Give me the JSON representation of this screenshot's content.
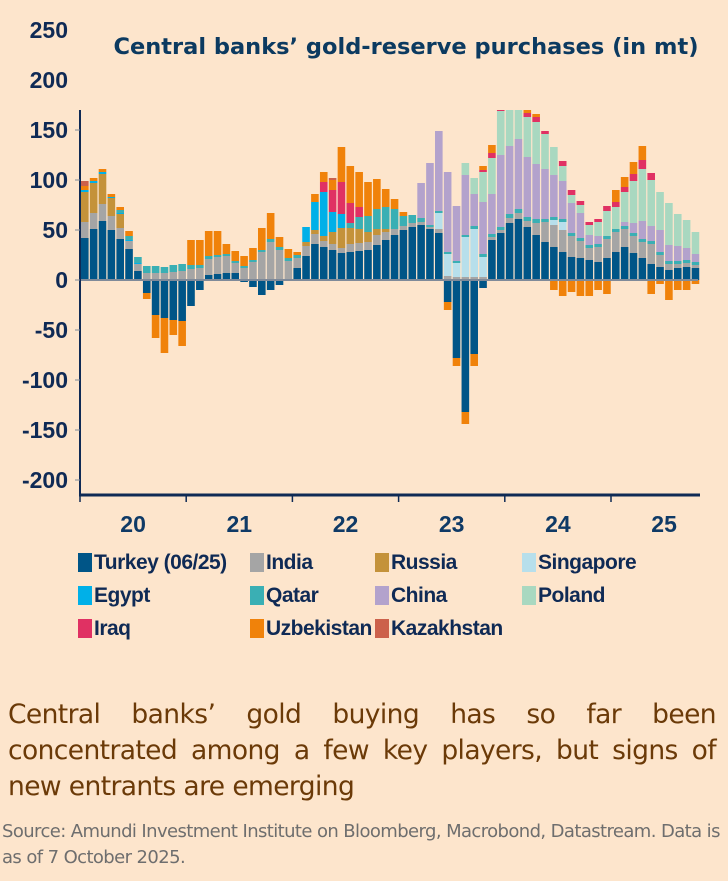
{
  "chart_data": {
    "type": "bar",
    "stacked": true,
    "title": "Central banks’ gold-reserve purchases (in mt)",
    "xlabel": "",
    "ylabel": "",
    "ylim": [
      -210,
      260
    ],
    "yticks": [
      250,
      200,
      150,
      100,
      50,
      0,
      -50,
      -100,
      -150,
      -200
    ],
    "year_ticks": [
      "20",
      "21",
      "22",
      "23",
      "24",
      "25"
    ],
    "frequency": "monthly",
    "period": "Jan 2020 - Jun 2025",
    "grid": false,
    "legend_position": "bottom",
    "series": [
      {
        "name": "Turkey (06/25)",
        "color": "#005587",
        "values": [
          42,
          51,
          59,
          50,
          41,
          31,
          9,
          -13,
          -35,
          -38,
          -40,
          -41,
          -26,
          -10,
          5,
          6,
          7,
          7,
          -2,
          -7,
          -15,
          -10,
          -5,
          1,
          12,
          24,
          36,
          33,
          30,
          27,
          28,
          29,
          30,
          35,
          40,
          45,
          50,
          53,
          55,
          51,
          47,
          -22,
          -78,
          -132,
          -74,
          -8,
          40,
          47,
          57,
          61,
          53,
          45,
          38,
          33,
          28,
          23,
          22,
          20,
          18,
          22,
          28,
          33,
          27,
          22,
          16,
          13,
          10,
          12,
          13,
          12
        ]
      },
      {
        "name": "India",
        "color": "#a5a5a5",
        "values": [
          16,
          16,
          17,
          14,
          11,
          8,
          7,
          7,
          7,
          7,
          8,
          9,
          11,
          12,
          16,
          17,
          17,
          10,
          12,
          18,
          28,
          38,
          30,
          18,
          10,
          10,
          10,
          6,
          6,
          5,
          8,
          8,
          8,
          10,
          8,
          6,
          4,
          4,
          3,
          2,
          4,
          4,
          3,
          3,
          3,
          3,
          3,
          3,
          5,
          6,
          6,
          12,
          20,
          22,
          22,
          21,
          17,
          12,
          15,
          19,
          20,
          18,
          17,
          16,
          20,
          12,
          6,
          4,
          4,
          3
        ]
      },
      {
        "name": "Russia",
        "color": "#c4923a",
        "values": [
          30,
          30,
          30,
          18,
          14,
          0,
          0,
          0,
          0,
          0,
          0,
          0,
          0,
          0,
          0,
          0,
          0,
          0,
          0,
          0,
          0,
          0,
          0,
          0,
          0,
          4,
          4,
          5,
          12,
          20,
          16,
          14,
          10,
          6,
          3,
          0,
          0,
          0,
          0,
          0,
          0,
          0,
          0,
          0,
          0,
          0,
          0,
          0,
          0,
          0,
          0,
          0,
          0,
          0,
          0,
          0,
          0,
          0,
          0,
          0,
          0,
          0,
          0,
          0,
          0,
          0,
          0,
          0,
          0,
          0
        ]
      },
      {
        "name": "Singapore",
        "color": "#b7dfeb",
        "values": [
          0,
          0,
          0,
          0,
          0,
          0,
          0,
          0,
          0,
          0,
          0,
          0,
          0,
          0,
          0,
          0,
          0,
          0,
          0,
          0,
          0,
          0,
          0,
          0,
          0,
          0,
          0,
          0,
          0,
          0,
          0,
          0,
          0,
          0,
          0,
          0,
          0,
          0,
          0,
          0,
          16,
          22,
          14,
          40,
          48,
          20,
          0,
          0,
          0,
          0,
          0,
          0,
          0,
          5,
          8,
          0,
          0,
          0,
          0,
          0,
          0,
          0,
          0,
          0,
          0,
          0,
          0,
          0,
          0,
          0
        ]
      },
      {
        "name": "Egypt",
        "color": "#00b0e8",
        "values": [
          2,
          2,
          2,
          1,
          1,
          1,
          1,
          0,
          0,
          0,
          0,
          0,
          0,
          0,
          0,
          0,
          0,
          0,
          0,
          0,
          0,
          0,
          0,
          0,
          0,
          15,
          28,
          44,
          20,
          14,
          0,
          0,
          0,
          0,
          0,
          0,
          0,
          0,
          0,
          0,
          0,
          0,
          0,
          0,
          0,
          0,
          0,
          0,
          0,
          0,
          0,
          0,
          0,
          0,
          0,
          0,
          0,
          0,
          0,
          0,
          0,
          0,
          0,
          0,
          0,
          0,
          0,
          0,
          0,
          0
        ]
      },
      {
        "name": "Qatar",
        "color": "#3aafb4",
        "values": [
          0,
          0,
          0,
          0,
          3,
          4,
          6,
          7,
          7,
          6,
          7,
          7,
          4,
          3,
          3,
          2,
          2,
          2,
          2,
          2,
          2,
          3,
          3,
          3,
          3,
          0,
          0,
          0,
          0,
          0,
          5,
          12,
          16,
          20,
          22,
          20,
          10,
          8,
          4,
          2,
          2,
          2,
          2,
          2,
          3,
          3,
          3,
          3,
          4,
          4,
          4,
          4,
          3,
          3,
          3,
          3,
          3,
          3,
          3,
          3,
          3,
          3,
          3,
          3,
          3,
          3,
          3,
          3,
          3,
          3
        ]
      },
      {
        "name": "China",
        "color": "#b3a2cc",
        "values": [
          0,
          0,
          0,
          0,
          0,
          0,
          0,
          0,
          0,
          0,
          0,
          0,
          0,
          0,
          0,
          0,
          0,
          0,
          0,
          0,
          0,
          0,
          0,
          0,
          0,
          0,
          0,
          0,
          0,
          0,
          0,
          0,
          0,
          0,
          0,
          0,
          0,
          0,
          35,
          62,
          80,
          80,
          55,
          60,
          32,
          52,
          40,
          72,
          68,
          70,
          60,
          55,
          50,
          42,
          38,
          30,
          25,
          10,
          8,
          0,
          0,
          4,
          10,
          18,
          15,
          22,
          16,
          15,
          12,
          8
        ]
      },
      {
        "name": "Poland",
        "color": "#a9d8c0",
        "values": [
          0,
          0,
          0,
          0,
          0,
          0,
          0,
          0,
          0,
          0,
          0,
          0,
          0,
          0,
          0,
          0,
          0,
          0,
          0,
          0,
          0,
          0,
          0,
          0,
          0,
          0,
          0,
          0,
          0,
          0,
          0,
          0,
          0,
          0,
          0,
          0,
          0,
          0,
          0,
          0,
          0,
          0,
          0,
          12,
          16,
          30,
          36,
          44,
          50,
          44,
          40,
          42,
          35,
          28,
          15,
          8,
          8,
          10,
          14,
          25,
          22,
          30,
          42,
          52,
          46,
          38,
          42,
          32,
          28,
          22
        ]
      },
      {
        "name": "Iraq",
        "color": "#e03163",
        "values": [
          0,
          0,
          0,
          0,
          0,
          0,
          0,
          0,
          0,
          0,
          0,
          0,
          0,
          0,
          0,
          0,
          0,
          0,
          0,
          0,
          0,
          0,
          0,
          0,
          0,
          0,
          0,
          10,
          22,
          32,
          20,
          10,
          0,
          0,
          0,
          0,
          0,
          0,
          0,
          0,
          0,
          0,
          0,
          0,
          0,
          2,
          5,
          5,
          4,
          6,
          4,
          5,
          3,
          0,
          5,
          5,
          4,
          3,
          3,
          5,
          5,
          5,
          7,
          9,
          7,
          0,
          0,
          0,
          0,
          0
        ]
      },
      {
        "name": "Uzbekistan",
        "color": "#f0820a",
        "values": [
          4,
          3,
          3,
          3,
          3,
          5,
          0,
          -6,
          -23,
          -35,
          -15,
          -25,
          25,
          25,
          25,
          24,
          10,
          10,
          10,
          12,
          22,
          26,
          10,
          9,
          3,
          0,
          8,
          10,
          10,
          35,
          37,
          35,
          34,
          30,
          18,
          10,
          4,
          0,
          0,
          0,
          0,
          -8,
          -8,
          -12,
          -12,
          4,
          8,
          5,
          7,
          5,
          4,
          3,
          0,
          -10,
          -16,
          -12,
          -16,
          -16,
          -10,
          -14,
          12,
          10,
          12,
          14,
          -14,
          -4,
          -20,
          -10,
          -10,
          -4
        ]
      },
      {
        "name": "Kazakhstan",
        "color": "#cc614b",
        "values": [
          5,
          0,
          0,
          0,
          0,
          0,
          0,
          0,
          0,
          0,
          0,
          0,
          0,
          0,
          0,
          0,
          0,
          0,
          0,
          0,
          0,
          0,
          0,
          0,
          0,
          0,
          0,
          0,
          2,
          0,
          0,
          0,
          0,
          0,
          0,
          0,
          0,
          0,
          0,
          0,
          0,
          0,
          0,
          0,
          0,
          0,
          0,
          0,
          0,
          0,
          0,
          0,
          0,
          0,
          0,
          0,
          0,
          0,
          0,
          0,
          0,
          0,
          0,
          0,
          0,
          0,
          0,
          0,
          0,
          0
        ]
      }
    ]
  },
  "legend": [
    {
      "label": "Turkey (06/25)",
      "color": "#005587"
    },
    {
      "label": "India",
      "color": "#a5a5a5"
    },
    {
      "label": "Russia",
      "color": "#c4923a"
    },
    {
      "label": "Singapore",
      "color": "#b7dfeb"
    },
    {
      "label": "Egypt",
      "color": "#00b0e8"
    },
    {
      "label": "Qatar",
      "color": "#3aafb4"
    },
    {
      "label": "China",
      "color": "#b3a2cc"
    },
    {
      "label": "Poland",
      "color": "#a9d8c0"
    },
    {
      "label": "Iraq",
      "color": "#e03163"
    },
    {
      "label": "Uzbekistan",
      "color": "#f0820a"
    },
    {
      "label": "Kazakhstan",
      "color": "#cc614b"
    }
  ],
  "caption": "Central banks’ gold buying has so far been concentrated among a few key players, but signs of new entrants are emerging",
  "source": "Source: Amundi Investment Institute on Bloomberg, Macrobond, Datastream. Data is as of 7 October 2025."
}
